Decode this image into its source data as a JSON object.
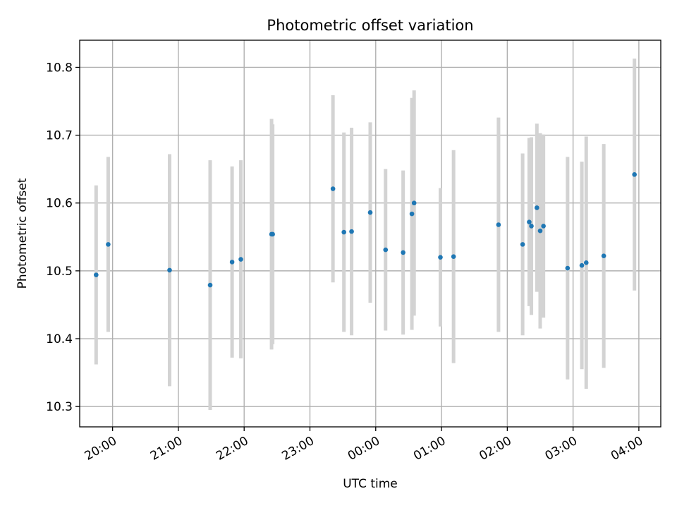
{
  "chart_data": {
    "type": "scatter",
    "title": "Photometric offset variation",
    "xlabel": "UTC time",
    "ylabel": "Photometric offset",
    "grid": true,
    "x_unit": "UTC date-time",
    "xlim": [
      "2020-01-01T19:30",
      "2020-01-02T04:20"
    ],
    "ylim": [
      10.27,
      10.84
    ],
    "x_ticks": [
      {
        "t": "2020-01-01T20:00",
        "label": "20:00"
      },
      {
        "t": "2020-01-01T21:00",
        "label": "21:00"
      },
      {
        "t": "2020-01-01T22:00",
        "label": "22:00"
      },
      {
        "t": "2020-01-01T23:00",
        "label": "23:00"
      },
      {
        "t": "2020-01-02T00:00",
        "label": "00:00"
      },
      {
        "t": "2020-01-02T01:00",
        "label": "01:00"
      },
      {
        "t": "2020-01-02T02:00",
        "label": "02:00"
      },
      {
        "t": "2020-01-02T03:00",
        "label": "03:00"
      },
      {
        "t": "2020-01-02T04:00",
        "label": "04:00"
      }
    ],
    "y_ticks": [
      {
        "v": 10.3,
        "label": "10.3"
      },
      {
        "v": 10.4,
        "label": "10.4"
      },
      {
        "v": 10.5,
        "label": "10.5"
      },
      {
        "v": 10.6,
        "label": "10.6"
      },
      {
        "v": 10.7,
        "label": "10.7"
      },
      {
        "v": 10.8,
        "label": "10.8"
      }
    ],
    "series": [
      {
        "marker_color": "#1f77b4",
        "errorbar_color": "#d3d3d3",
        "points": [
          {
            "x": "2020-01-01T19:45",
            "y": 10.494,
            "err": 0.132
          },
          {
            "x": "2020-01-01T19:56",
            "y": 10.539,
            "err": 0.129
          },
          {
            "x": "2020-01-01T20:52",
            "y": 10.501,
            "err": 0.171
          },
          {
            "x": "2020-01-01T21:29",
            "y": 10.479,
            "err": 0.184
          },
          {
            "x": "2020-01-01T21:49",
            "y": 10.513,
            "err": 0.141
          },
          {
            "x": "2020-01-01T21:57",
            "y": 10.517,
            "err": 0.146
          },
          {
            "x": "2020-01-01T22:25",
            "y": 10.554,
            "err": 0.17
          },
          {
            "x": "2020-01-01T22:26",
            "y": 10.554,
            "err": 0.162
          },
          {
            "x": "2020-01-01T23:21",
            "y": 10.621,
            "err": 0.138
          },
          {
            "x": "2020-01-01T23:31",
            "y": 10.557,
            "err": 0.147
          },
          {
            "x": "2020-01-01T23:38",
            "y": 10.558,
            "err": 0.153
          },
          {
            "x": "2020-01-01T23:55",
            "y": 10.586,
            "err": 0.133
          },
          {
            "x": "2020-01-02T00:09",
            "y": 10.531,
            "err": 0.119
          },
          {
            "x": "2020-01-02T00:25",
            "y": 10.527,
            "err": 0.121
          },
          {
            "x": "2020-01-02T00:33",
            "y": 10.584,
            "err": 0.171
          },
          {
            "x": "2020-01-02T00:35",
            "y": 10.6,
            "err": 0.166
          },
          {
            "x": "2020-01-02T00:59",
            "y": 10.52,
            "err": 0.102
          },
          {
            "x": "2020-01-02T01:11",
            "y": 10.521,
            "err": 0.157
          },
          {
            "x": "2020-01-02T01:52",
            "y": 10.568,
            "err": 0.158
          },
          {
            "x": "2020-01-02T02:14",
            "y": 10.539,
            "err": 0.134
          },
          {
            "x": "2020-01-02T02:20",
            "y": 10.572,
            "err": 0.124
          },
          {
            "x": "2020-01-02T02:22",
            "y": 10.566,
            "err": 0.131
          },
          {
            "x": "2020-01-02T02:27",
            "y": 10.593,
            "err": 0.124
          },
          {
            "x": "2020-01-02T02:30",
            "y": 10.559,
            "err": 0.144
          },
          {
            "x": "2020-01-02T02:33",
            "y": 10.566,
            "err": 0.135
          },
          {
            "x": "2020-01-02T02:55",
            "y": 10.504,
            "err": 0.164
          },
          {
            "x": "2020-01-02T03:08",
            "y": 10.508,
            "err": 0.153
          },
          {
            "x": "2020-01-02T03:12",
            "y": 10.512,
            "err": 0.186
          },
          {
            "x": "2020-01-02T03:28",
            "y": 10.522,
            "err": 0.165
          },
          {
            "x": "2020-01-02T03:56",
            "y": 10.642,
            "err": 0.171
          }
        ]
      }
    ]
  }
}
